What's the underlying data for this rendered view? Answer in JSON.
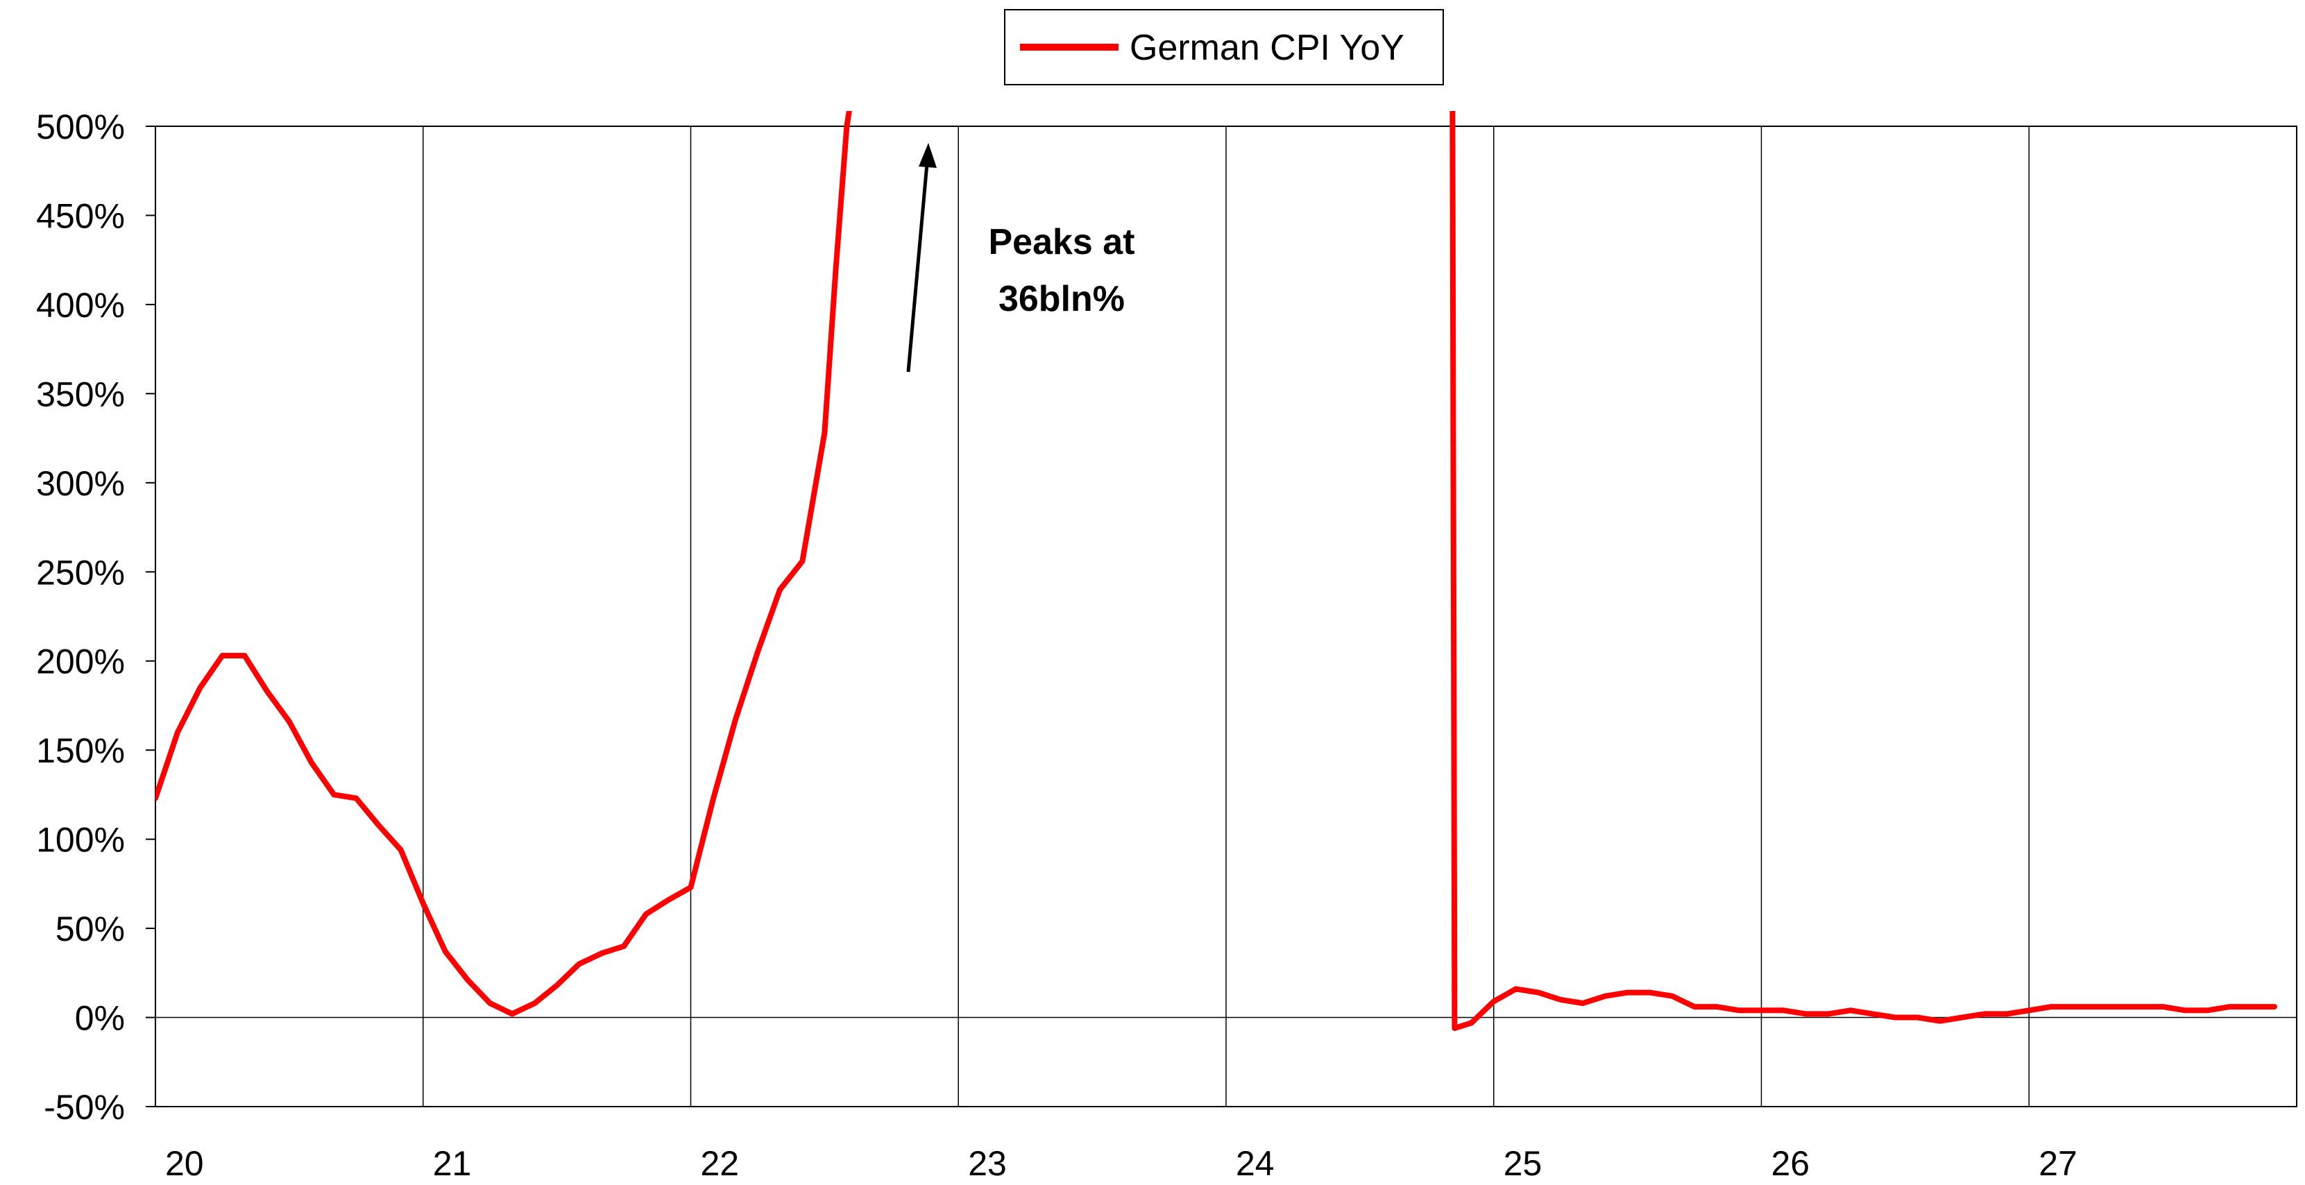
{
  "chart_data": {
    "type": "line",
    "title": "",
    "xlabel": "",
    "ylabel": "",
    "xlim": [
      20,
      28
    ],
    "ylim": [
      -50,
      500
    ],
    "y_unit": "%",
    "grid": "vertical lines at each year, horizontal line at 0%",
    "legend_position": "top-center",
    "x_tick_labels": [
      "20",
      "21",
      "22",
      "23",
      "24",
      "25",
      "26",
      "27"
    ],
    "y_tick_labels": [
      "500%",
      "450%",
      "400%",
      "350%",
      "300%",
      "250%",
      "200%",
      "150%",
      "100%",
      "50%",
      "0%",
      "-50%"
    ],
    "series": [
      {
        "name": "German CPI YoY",
        "color": "#ff0000",
        "x": [
          20.0,
          20.083,
          20.167,
          20.25,
          20.333,
          20.417,
          20.5,
          20.583,
          20.667,
          20.75,
          20.833,
          20.917,
          21.0,
          21.083,
          21.167,
          21.25,
          21.333,
          21.417,
          21.5,
          21.583,
          21.667,
          21.75,
          21.833,
          21.917,
          22.0,
          22.083,
          22.167,
          22.25,
          22.333,
          22.417,
          22.5,
          22.542,
          22.583,
          22.604,
          24.846,
          24.854,
          24.917,
          25.0,
          25.083,
          25.167,
          25.25,
          25.333,
          25.417,
          25.5,
          25.583,
          25.667,
          25.75,
          25.833,
          25.917,
          26.0,
          26.083,
          26.167,
          26.25,
          26.333,
          26.417,
          26.5,
          26.583,
          26.667,
          26.75,
          26.833,
          26.917,
          27.0,
          27.083,
          27.167,
          27.25,
          27.333,
          27.417,
          27.5,
          27.583,
          27.667,
          27.75,
          27.833,
          27.917
        ],
        "values": [
          123,
          160,
          185,
          203,
          203,
          183,
          166,
          143,
          125,
          123,
          108,
          94,
          64,
          37,
          21,
          8,
          2,
          8,
          18,
          30,
          36,
          40,
          58,
          66,
          73,
          122,
          167,
          205,
          240,
          256,
          328,
          420,
          500,
          520,
          520,
          -6,
          -3,
          9,
          16,
          14,
          10,
          8,
          12,
          14,
          14,
          12,
          6,
          6,
          4,
          4,
          4,
          2,
          2,
          4,
          2,
          0,
          0,
          -2,
          0,
          2,
          2,
          4,
          6,
          6,
          6,
          6,
          6,
          6,
          4,
          4,
          6,
          6,
          6
        ]
      }
    ],
    "annotation": {
      "text_line1": "Peaks at",
      "text_line2": "36bln%",
      "arrow": "up"
    }
  }
}
